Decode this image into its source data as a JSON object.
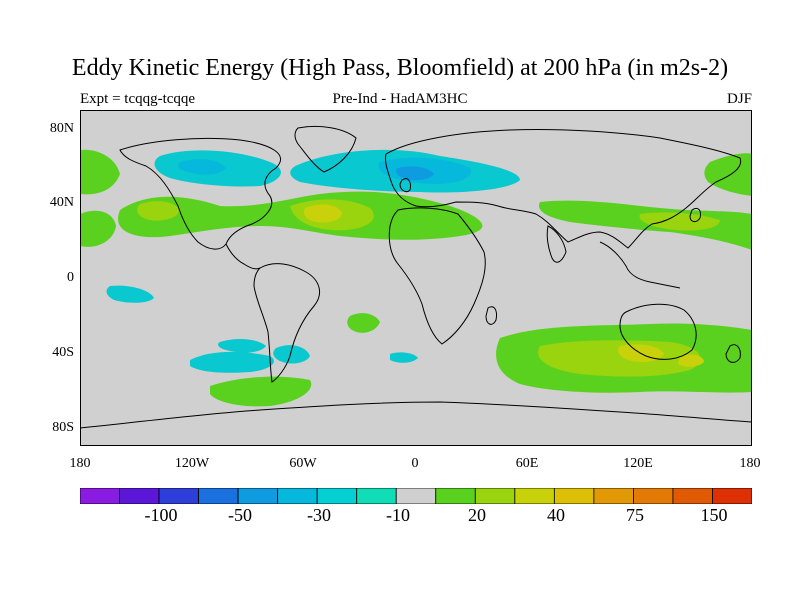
{
  "title": "Eddy Kinetic Energy (High Pass, Bloomfield) at 200 hPa (in m2s-2)",
  "left_label": "Expt = tcqqg-tcqqe",
  "center_label": "Pre-Ind - HadAM3HC",
  "right_label": "DJF",
  "lat_ticks": [
    "80N",
    "40N",
    "0",
    "40S",
    "80S"
  ],
  "lon_ticks": [
    "180",
    "120W",
    "60W",
    "0",
    "60E",
    "120E",
    "180"
  ],
  "colorbar": {
    "labels": [
      "-100",
      "-50",
      "-30",
      "-10",
      "20",
      "40",
      "75",
      "150"
    ],
    "colors": [
      "#8a1be0",
      "#5a17d8",
      "#2d3fd8",
      "#1a70de",
      "#0e9be0",
      "#05b8dc",
      "#04cfd2",
      "#10ddb5",
      "#d0d0d0",
      "#5ad11e",
      "#9ad40e",
      "#c9d10a",
      "#ddbf08",
      "#e19a06",
      "#e27a05",
      "#e05a04",
      "#dd3005"
    ]
  },
  "colors": {
    "land_bg": "#d0d0d0",
    "teal": "#0ac8cf",
    "cyan": "#05b8dc",
    "blue": "#0e9be0",
    "green": "#5ad11e",
    "lime": "#9ad40e",
    "yellow": "#c9d10a"
  }
}
